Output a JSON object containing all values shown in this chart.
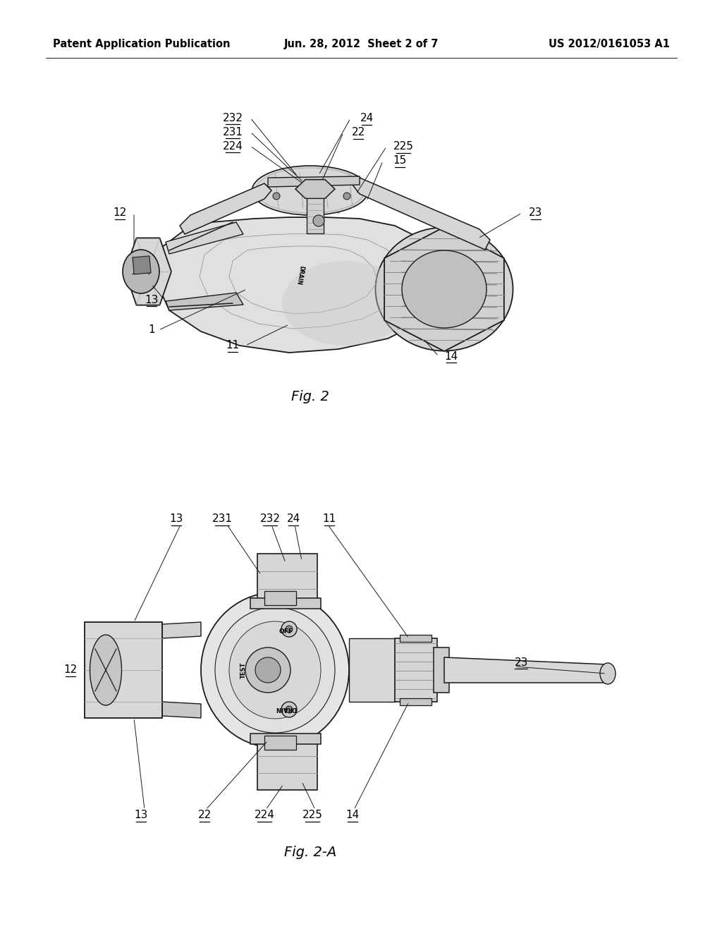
{
  "background_color": "#ffffff",
  "header": {
    "left_text": "Patent Application Publication",
    "center_text": "Jun. 28, 2012  Sheet 2 of 7",
    "right_text": "US 2012/0161053 A1",
    "fontsize": 10.5
  },
  "fig2_caption": "Fig. 2",
  "fig2a_caption": "Fig. 2-A",
  "line_color": "#1a1a1a",
  "fill_light": "#e8e8e8",
  "fill_mid": "#d0d0d0",
  "fill_dark": "#b0b0b0"
}
